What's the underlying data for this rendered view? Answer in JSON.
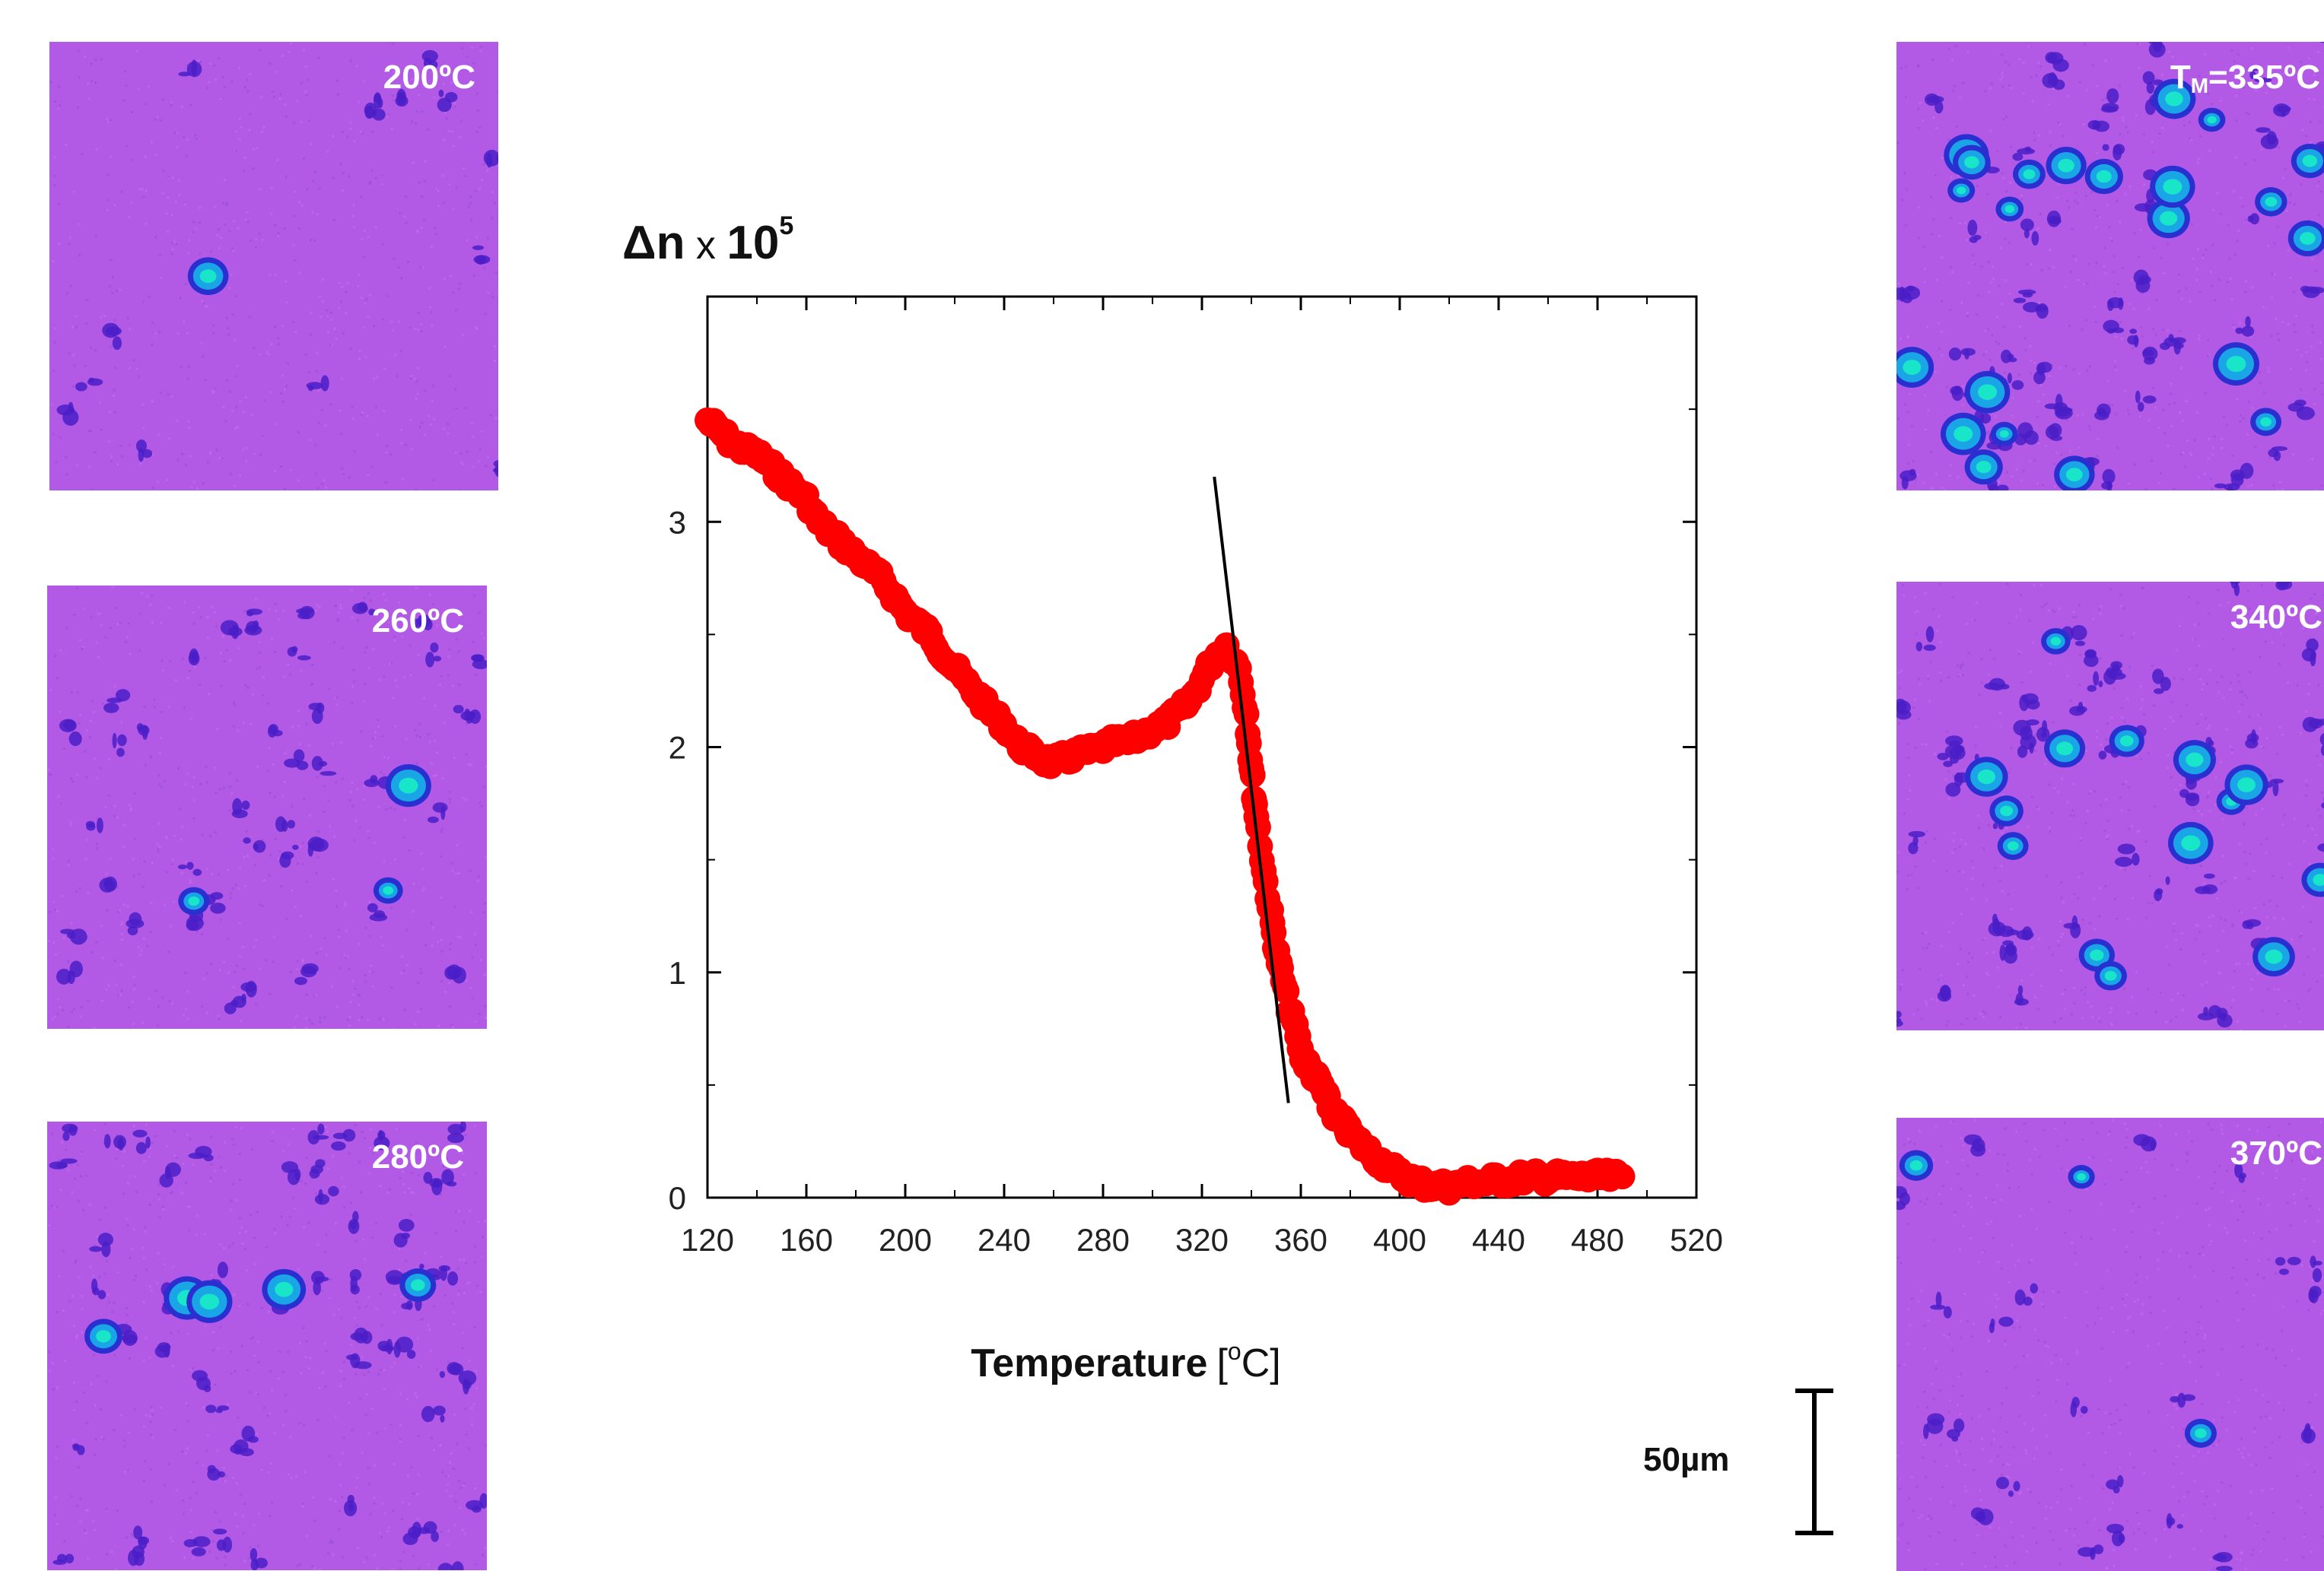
{
  "panels": {
    "p200": {
      "label": "200ºC"
    },
    "p260": {
      "label": "260ºC"
    },
    "p280": {
      "label": "280ºC"
    },
    "p335": {
      "label_main": "T",
      "label_sub": "M",
      "label_rest": "=335ºC"
    },
    "p340": {
      "label": "340ºC"
    },
    "p370": {
      "label": "370ºC"
    }
  },
  "scale_bar": {
    "label": "50µm"
  },
  "colors": {
    "panel_bg": "#b25ae6",
    "data": "#ff0000",
    "fit_line": "#000000",
    "particle_dark": "#4a1fc7",
    "particle_bright": "#19e6c8"
  },
  "chart_data": {
    "type": "scatter",
    "ylabel_main": "Δn",
    "ylabel_mult": " x ",
    "ylabel_base": "10",
    "ylabel_exp": "5",
    "xlabel": "Temperature",
    "xunit": "[",
    "xunit_deg": "o",
    "xunit_end": "C]",
    "xlim": [
      120,
      520
    ],
    "ylim": [
      0,
      4
    ],
    "xticks": [
      "120",
      "160",
      "200",
      "240",
      "280",
      "320",
      "360",
      "400",
      "440",
      "480",
      "520"
    ],
    "yticks": [
      "0",
      "1",
      "2",
      "3"
    ],
    "series": [
      {
        "name": "Δn",
        "x": [
          120,
          125,
          130,
          135,
          140,
          145,
          150,
          155,
          160,
          165,
          170,
          175,
          180,
          185,
          190,
          195,
          200,
          205,
          210,
          215,
          220,
          225,
          230,
          235,
          240,
          245,
          250,
          255,
          260,
          265,
          270,
          275,
          280,
          285,
          290,
          295,
          300,
          305,
          310,
          315,
          320,
          325,
          330,
          335,
          338,
          340,
          342,
          345,
          348,
          350,
          352,
          355,
          358,
          360,
          362,
          365,
          368,
          370,
          372,
          375,
          378,
          380,
          385,
          390,
          395,
          400,
          405,
          410,
          415,
          420,
          425,
          430,
          435,
          440,
          445,
          450,
          455,
          460,
          465,
          470,
          475,
          480,
          485,
          490
        ],
        "y": [
          3.45,
          3.4,
          3.35,
          3.32,
          3.3,
          3.25,
          3.2,
          3.15,
          3.1,
          3.0,
          2.95,
          2.9,
          2.85,
          2.8,
          2.75,
          2.68,
          2.6,
          2.55,
          2.5,
          2.42,
          2.35,
          2.28,
          2.22,
          2.15,
          2.1,
          2.02,
          1.98,
          1.95,
          1.93,
          1.95,
          1.97,
          1.98,
          2.0,
          2.02,
          2.02,
          2.05,
          2.08,
          2.1,
          2.15,
          2.2,
          2.3,
          2.4,
          2.45,
          2.35,
          2.15,
          1.9,
          1.7,
          1.45,
          1.25,
          1.1,
          1.0,
          0.85,
          0.75,
          0.65,
          0.6,
          0.55,
          0.5,
          0.45,
          0.4,
          0.35,
          0.32,
          0.28,
          0.23,
          0.18,
          0.14,
          0.1,
          0.08,
          0.06,
          0.05,
          0.05,
          0.06,
          0.07,
          0.07,
          0.08,
          0.08,
          0.09,
          0.09,
          0.09,
          0.09,
          0.09,
          0.09,
          0.09,
          0.09,
          0.09
        ]
      },
      {
        "name": "fit",
        "x": [
          325,
          355
        ],
        "y": [
          3.2,
          0.42
        ]
      }
    ]
  }
}
